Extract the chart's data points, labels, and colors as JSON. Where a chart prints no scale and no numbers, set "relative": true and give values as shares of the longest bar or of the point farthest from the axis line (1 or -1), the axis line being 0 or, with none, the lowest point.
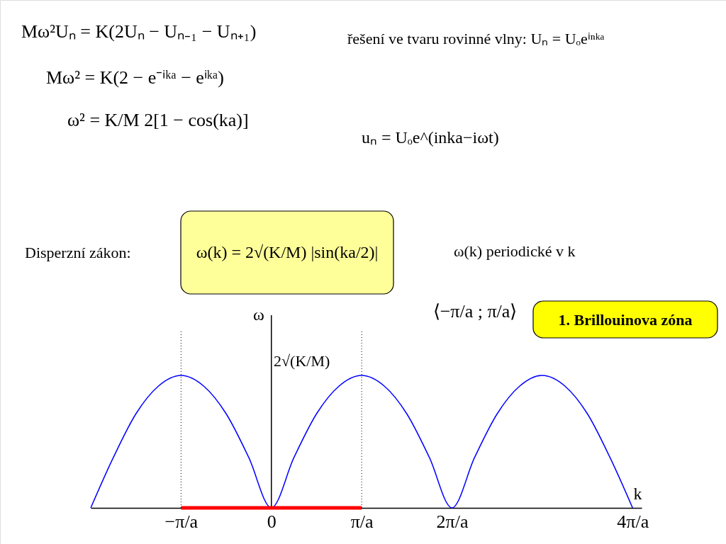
{
  "chart_data": {
    "type": "line",
    "relative": true,
    "xlabel": "k",
    "ylabel": "ω",
    "x": [
      -2,
      -1.75,
      -1.5,
      -1.25,
      -1,
      -0.75,
      -0.5,
      -0.25,
      0,
      0.25,
      0.5,
      0.75,
      1,
      1.25,
      1.5,
      1.75,
      2,
      2.25,
      2.5,
      2.75,
      3,
      3.25,
      3.5,
      3.75,
      4
    ],
    "series": [
      {
        "color": "#0000ff",
        "values": [
          0,
          0.38,
          0.71,
          0.92,
          1,
          0.92,
          0.71,
          0.38,
          0,
          0.38,
          0.71,
          0.92,
          1,
          0.92,
          0.71,
          0.38,
          0,
          0.38,
          0.71,
          0.92,
          1,
          0.92,
          0.71,
          0.38,
          0
        ]
      },
      {
        "type": "line",
        "color": "#ff0000",
        "x": [
          -1,
          1
        ],
        "values": [
          0,
          0
        ]
      }
    ],
    "xlim": [
      -2,
      4.1
    ],
    "xticks": [
      {
        "value": -1,
        "label": "−π/a"
      },
      0,
      {
        "value": 1,
        "label": "π/a"
      },
      {
        "value": 2,
        "label": "2π/a"
      },
      {
        "value": 4,
        "label": "4π/a"
      }
    ],
    "ref_lines": [
      {
        "axis": "x",
        "value": -1,
        "line_style": "dotted",
        "color": "#000000"
      },
      {
        "axis": "x",
        "value": 1,
        "line_style": "dotted",
        "color": "#000000"
      }
    ],
    "annotations": [
      "Mω²Uₙ = K(2Uₙ − Uₙ₋₁ − Uₙ₊₁)",
      "řešení ve tvaru rovinné vlny:  Uₙ = Uₒeⁱⁿᵏᵃ",
      "Mω² = K(2 − e⁻ⁱᵏᵃ − eⁱᵏᵃ)",
      "ω² = K/M 2[1 − cos(ka)]",
      "uₙ = Uₒe^(inka−iωt)",
      "Disperzní zákon:",
      "ω(k) = 2√(K/M) |sin(ka/2)|",
      "ω(k)  periodické v k",
      "⟨−π/a ; π/a⟩",
      "1. Brillouinova zóna",
      "2√(K/M)"
    ]
  }
}
